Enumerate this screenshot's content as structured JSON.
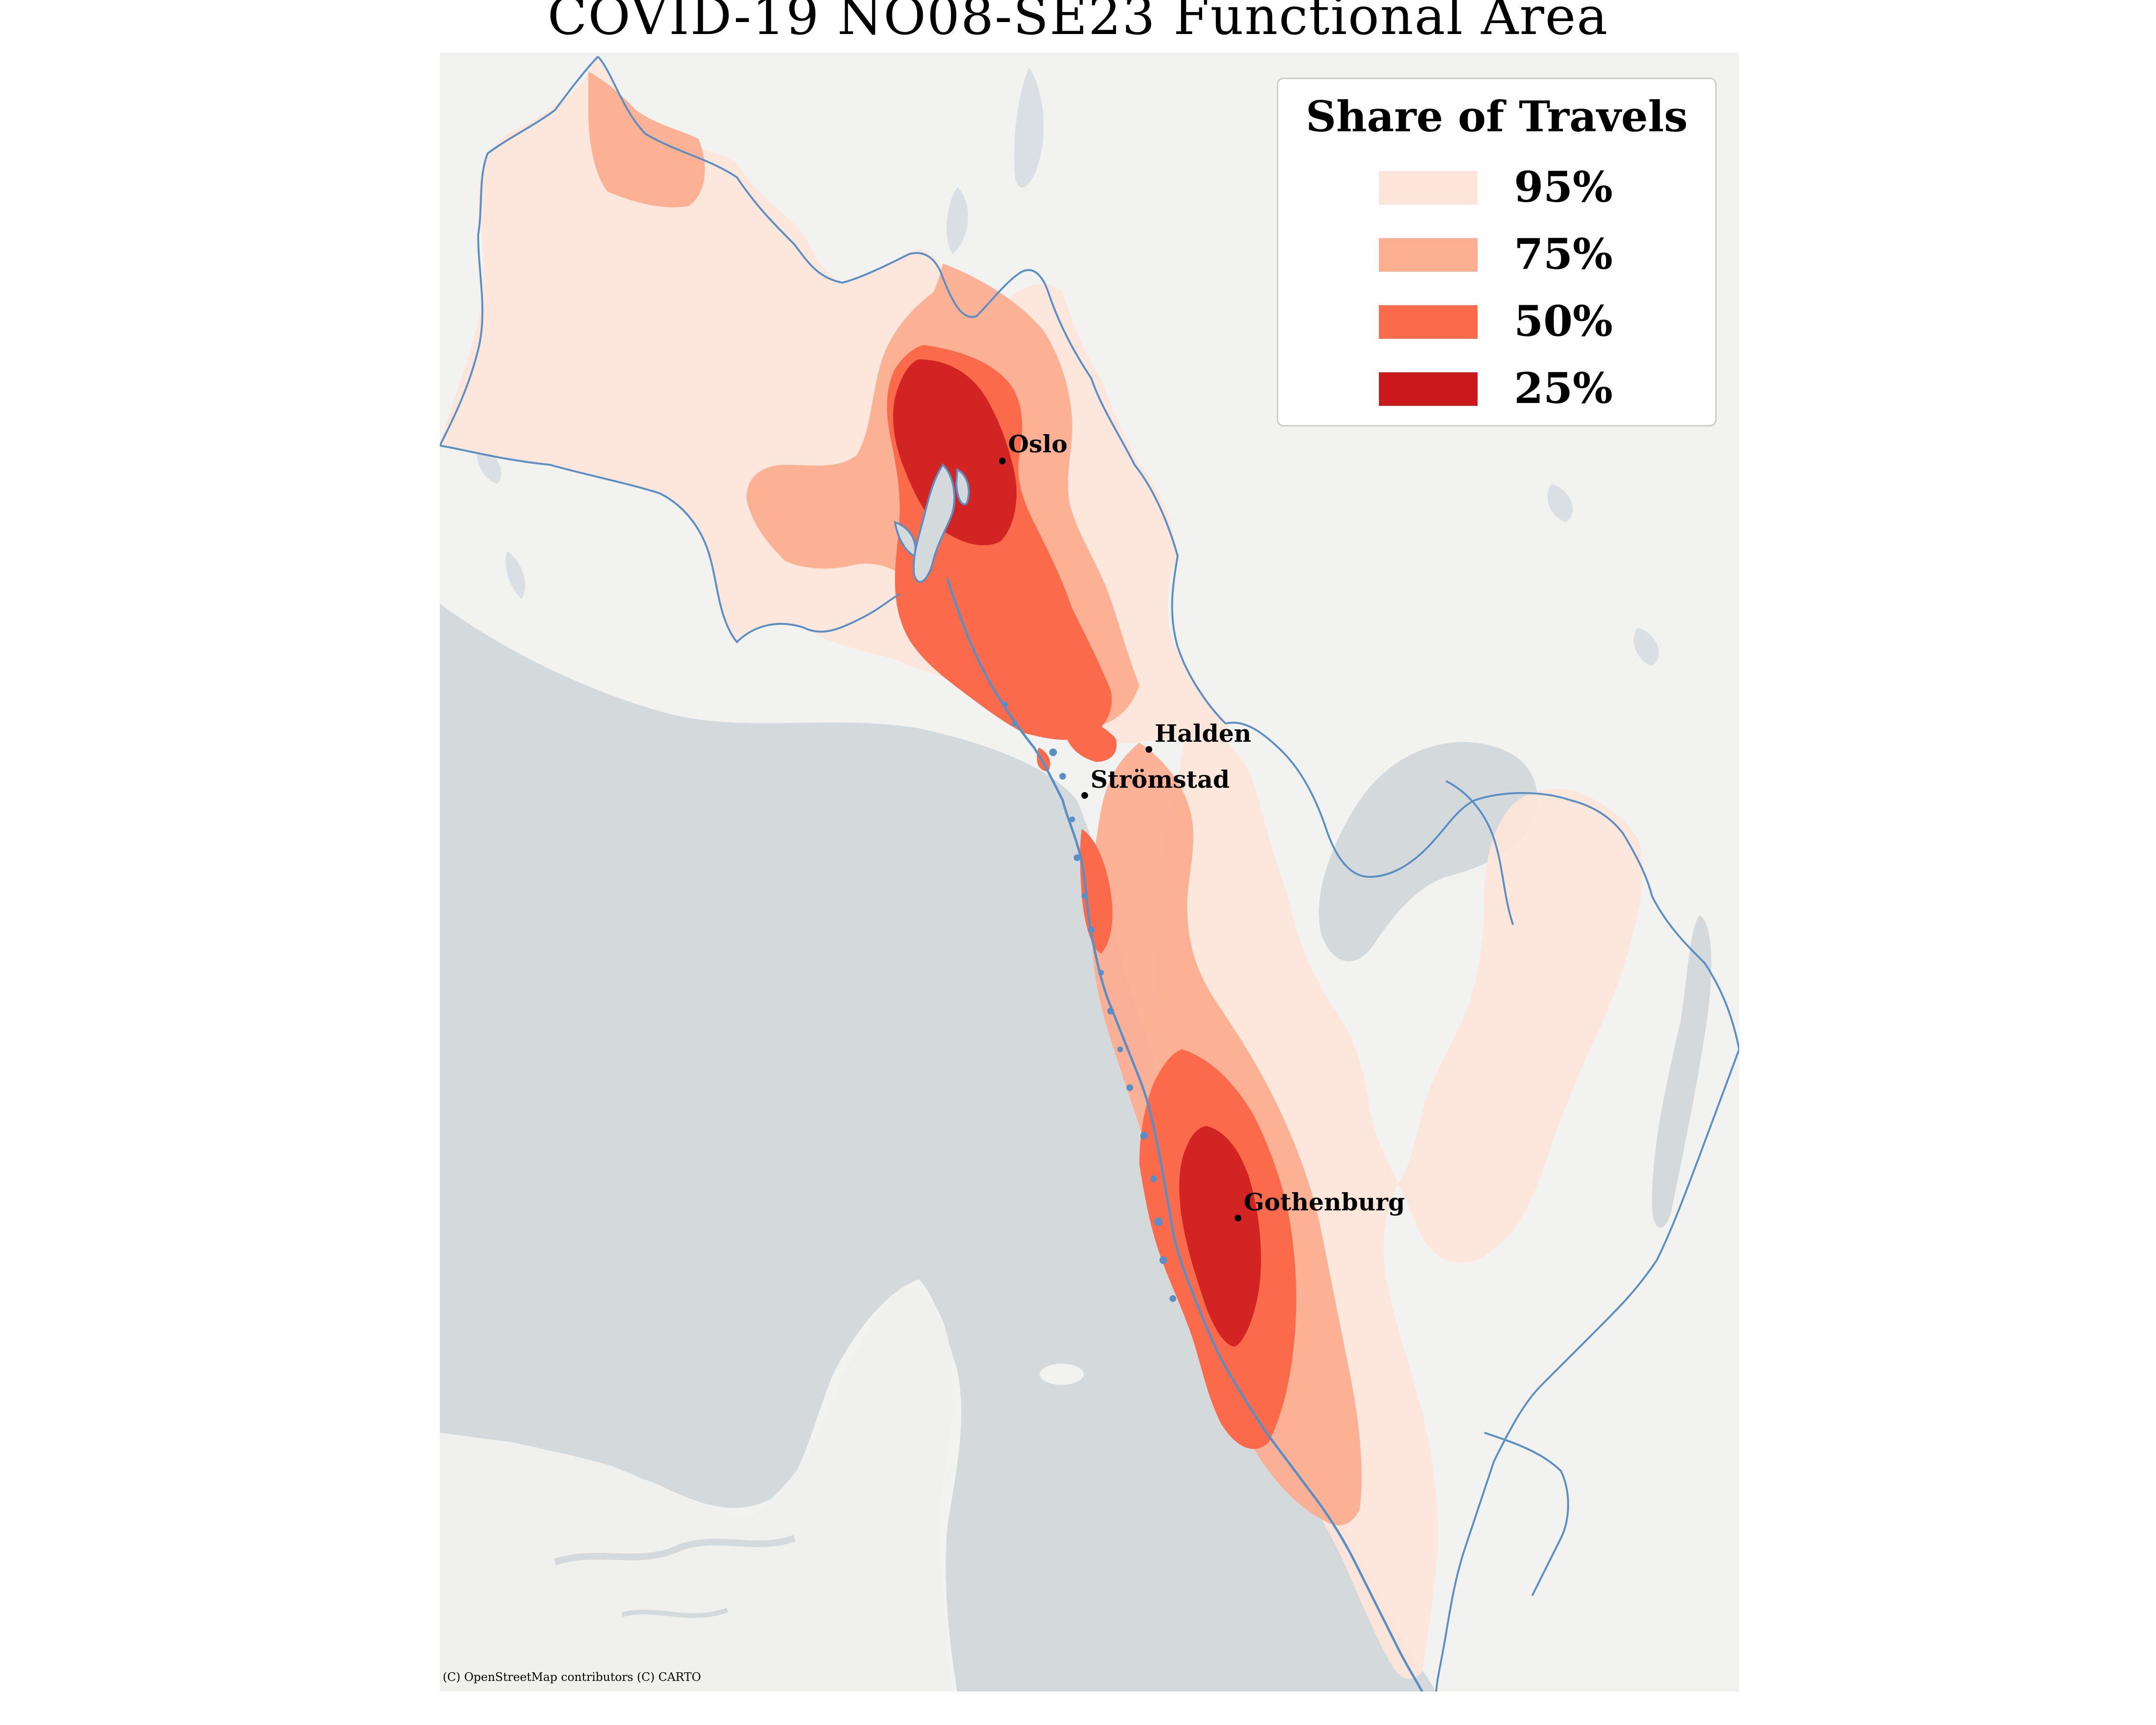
{
  "title": "COVID-19 NO08-SE23 Functional Area",
  "legend": {
    "title": "Share of Travels",
    "items": [
      {
        "label": "95%",
        "color": "#fee5d9"
      },
      {
        "label": "75%",
        "color": "#fcae91"
      },
      {
        "label": "50%",
        "color": "#fb6a4a"
      },
      {
        "label": "25%",
        "color": "#cb181d"
      }
    ]
  },
  "cities": [
    {
      "name": "Oslo"
    },
    {
      "name": "Halden"
    },
    {
      "name": "Strömstad"
    },
    {
      "name": "Gothenburg"
    }
  ],
  "attribution": "(C) OpenStreetMap contributors (C) CARTO",
  "colors": {
    "land": "#f2f3f1",
    "water": "#d4dadc",
    "border": "#5b8fc4",
    "lake": "#d9dfe2"
  }
}
